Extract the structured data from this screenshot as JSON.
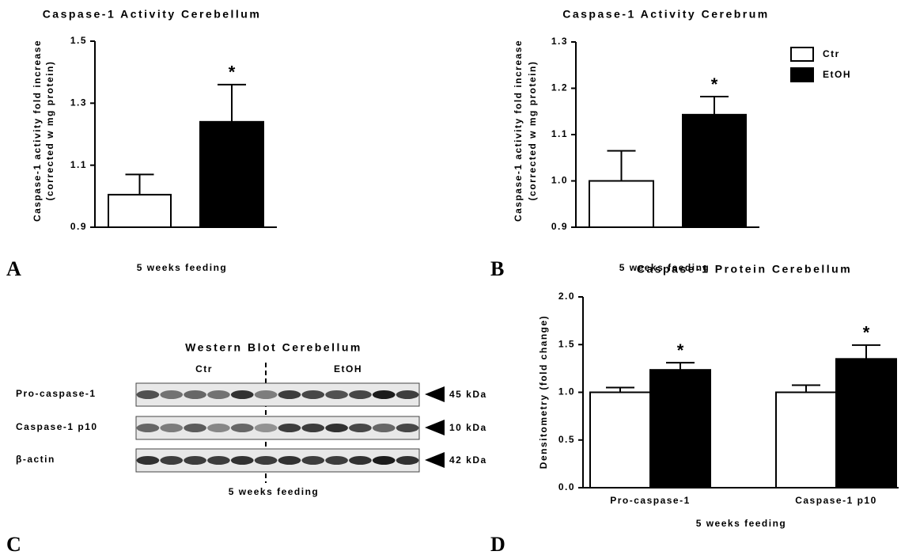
{
  "chart_data": [
    {
      "type": "bar",
      "title": "Caspase-1 Activity Cerebellum",
      "y_label": [
        "Caspase-1 activity fold increase",
        "(corrected w mg protein)"
      ],
      "x_label": "5 weeks feeding",
      "series": [
        {
          "color": "#ffffff",
          "values": [
            1.005
          ],
          "errors": [
            0.065
          ],
          "significance": [
            null
          ]
        },
        {
          "color": "#000000",
          "values": [
            1.24
          ],
          "errors": [
            0.12
          ],
          "significance": [
            "*"
          ]
        }
      ],
      "ylim": [
        0.9,
        1.5
      ],
      "yticks": [
        0.9,
        1.1,
        1.3,
        1.5
      ],
      "legend": false
    },
    {
      "type": "bar",
      "title": "Caspase-1 Activity Cerebrum",
      "y_label": [
        "Caspase-1 activity fold increase",
        "(corrected w mg protein)"
      ],
      "x_label": "5 weeks feeding",
      "series": [
        {
          "name": "Ctr",
          "color": "#ffffff",
          "values": [
            1.0
          ],
          "errors": [
            0.065
          ],
          "significance": [
            null
          ]
        },
        {
          "name": "EtOH",
          "color": "#000000",
          "values": [
            1.143
          ],
          "errors": [
            0.039
          ],
          "significance": [
            "*"
          ]
        }
      ],
      "ylim": [
        0.9,
        1.3
      ],
      "yticks": [
        0.9,
        {
          "value": 1,
          "label": "1.0"
        },
        1.1,
        1.2,
        1.3
      ],
      "legend": "upper right"
    },
    {
      "type": "bar",
      "title": "Caspase-1 Protein Cerebellum",
      "y_label": "Densitometry (fold change)",
      "x_label": "5 weeks feeding",
      "categories": [
        "Pro-caspase-1",
        "Caspase-1 p10"
      ],
      "series": [
        {
          "color": "#ffffff",
          "values": [
            1.0,
            1.0
          ],
          "errors": [
            0.05,
            0.075
          ],
          "significance": [
            null,
            null
          ]
        },
        {
          "color": "#000000",
          "values": [
            1.235,
            1.35
          ],
          "errors": [
            0.075,
            0.145
          ],
          "significance": [
            "*",
            "*"
          ]
        }
      ],
      "ylim": [
        0,
        2
      ],
      "yticks": [
        {
          "value": 0,
          "label": "0.0"
        },
        0.5,
        {
          "value": 1,
          "label": "1.0"
        },
        1.5,
        {
          "value": 2,
          "label": "2.0"
        }
      ],
      "legend": false
    }
  ],
  "blot": {
    "title": "Western Blot Cerebellum",
    "groups": [
      "Ctr",
      "EtOH"
    ],
    "rows": [
      {
        "label": "Pro-caspase-1",
        "size": "45 kDa"
      },
      {
        "label": "Caspase-1 p10",
        "size": "10 kDa"
      },
      {
        "label": "β-actin",
        "size": "42 kDa"
      }
    ],
    "x_label": "5 weeks feeding"
  },
  "panel_labels": [
    "A",
    "B",
    "C",
    "D"
  ]
}
